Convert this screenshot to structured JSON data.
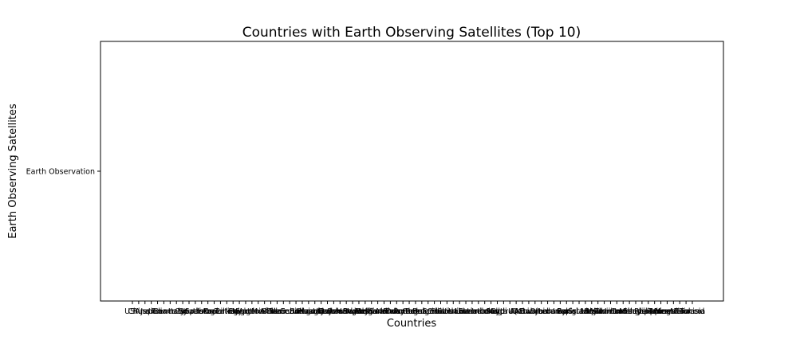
{
  "chart_data": {
    "type": "scatter",
    "title": "Countries with Earth Observing Satellites (Top 10)",
    "xlabel": "Countries",
    "ylabel": "Earth Observing Satellites",
    "y_categories": [
      "Earth Observation"
    ],
    "x_categories": [
      "USA",
      "China",
      "Russia",
      "Japan",
      "India",
      "France",
      "Germany",
      "Italy",
      "UK",
      "Canada",
      "Spain",
      "South Korea",
      "Israel",
      "Brazil",
      "Argentina",
      "Turkey",
      "Iran",
      "Egypt",
      "Nigeria",
      "Algeria",
      "South Africa",
      "Mexico",
      "Chile",
      "Peru",
      "Colombia",
      "Venezuela",
      "Ecuador",
      "Bolivia",
      "Uruguay",
      "Paraguay",
      "Kazakhstan",
      "Ukraine",
      "Belarus",
      "Poland",
      "Czech Republic",
      "Hungary",
      "Austria",
      "Switzerland",
      "Belgium",
      "Netherlands",
      "Sweden",
      "Norway",
      "Finland",
      "Denmark",
      "Portugal",
      "Greece",
      "Romania",
      "Bulgaria",
      "Serbia",
      "Croatia",
      "Slovenia",
      "Slovakia",
      "Lithuania",
      "Latvia",
      "Estonia",
      "Luxembourg",
      "Ireland",
      "Iceland",
      "Malta",
      "Cyprus",
      "Saudi Arabia",
      "UAE",
      "Qatar",
      "Kuwait",
      "Bahrain",
      "Oman",
      "Jordan",
      "Lebanon",
      "Iraq",
      "Syria",
      "Pakistan",
      "Bangladesh",
      "Sri Lanka",
      "Nepal",
      "Bhutan",
      "Myanmar",
      "Thailand",
      "Vietnam",
      "Laos",
      "Cambodia",
      "Malaysia",
      "Singapore",
      "Indonesia",
      "Philippines",
      "Taiwan",
      "Mongolia",
      "Australia",
      "New Zealand",
      "Morocco",
      "Tunisia"
    ],
    "series": [
      {
        "points": []
      }
    ],
    "grid": false,
    "legend": "none"
  }
}
